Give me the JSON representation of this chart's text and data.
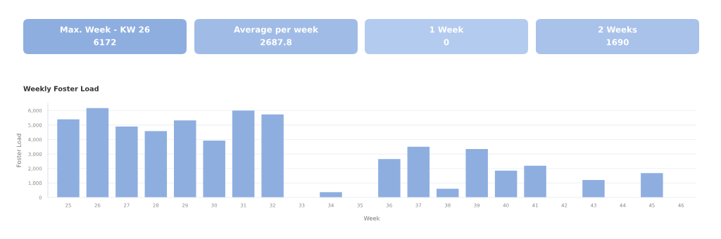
{
  "chart_data": [
    {
      "type": "other",
      "title": "Max. Week - KW 26",
      "subtitle": "6172",
      "color": "#8eaee0"
    },
    {
      "type": "other",
      "title": "Average per week",
      "subtitle": "2687.8",
      "color": "#a0bce6"
    },
    {
      "type": "other",
      "title": "1 Week",
      "subtitle": "0",
      "color": "#b3cbee"
    },
    {
      "type": "other",
      "title": "2 Weeks",
      "subtitle": "1690",
      "color": "#a9c2ea"
    },
    {
      "type": "bar",
      "title": "Weekly Foster Load",
      "xlabel": "Week",
      "ylabel": "Foster Load",
      "categories": [
        "25",
        "26",
        "27",
        "28",
        "29",
        "30",
        "31",
        "32",
        "33",
        "34",
        "35",
        "36",
        "37",
        "38",
        "39",
        "40",
        "41",
        "42",
        "43",
        "44",
        "45",
        "46"
      ],
      "values": [
        5400,
        6172,
        4900,
        4580,
        5320,
        3930,
        6000,
        5740,
        0,
        370,
        0,
        2650,
        3500,
        610,
        3350,
        1860,
        2200,
        0,
        1210,
        0,
        1690,
        0
      ],
      "color": "#8eaee0",
      "ylim": [
        0,
        6500
      ],
      "yticks": [
        {
          "value": 0,
          "label": "0"
        },
        {
          "value": 1000,
          "label": "1,000"
        },
        {
          "value": 2000,
          "label": "2,000"
        },
        {
          "value": 3000,
          "label": "3,000"
        },
        {
          "value": 4000,
          "label": "4,000"
        },
        {
          "value": 5000,
          "label": "5,000"
        },
        {
          "value": 6000,
          "label": "6,000"
        }
      ],
      "grid": "y"
    }
  ]
}
